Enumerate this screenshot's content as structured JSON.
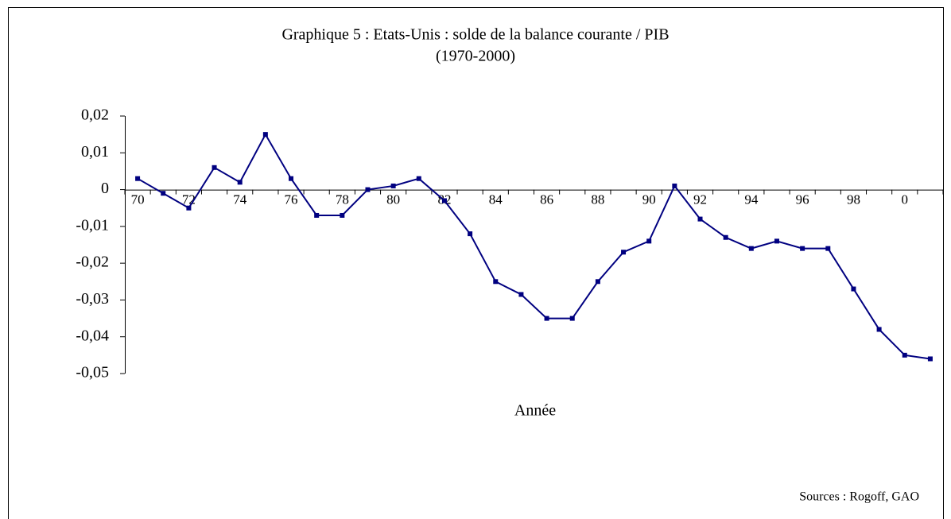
{
  "chart_data": {
    "type": "line",
    "title": "Graphique 5 : Etats-Unis : solde de la balance courante / PIB",
    "subtitle": "(1970-2000)",
    "x_label": "Année",
    "source": "Sources : Rogoff,  GAO",
    "categories": [
      "70",
      null,
      "72",
      null,
      "74",
      null,
      "76",
      null,
      "78",
      null,
      "80",
      null,
      "82",
      null,
      "84",
      null,
      "86",
      null,
      "88",
      null,
      "90",
      null,
      "92",
      null,
      "94",
      null,
      "96",
      null,
      "98",
      null,
      "0",
      null
    ],
    "series": [
      {
        "name": "Solde",
        "color": "#000080",
        "values": [
          0.003,
          -0.001,
          -0.005,
          0.006,
          0.002,
          0.015,
          0.003,
          -0.007,
          -0.007,
          0,
          0.001,
          0.003,
          -0.003,
          -0.012,
          -0.025,
          -0.0285,
          -0.035,
          -0.035,
          -0.025,
          -0.017,
          -0.014,
          0.001,
          -0.008,
          -0.013,
          -0.016,
          -0.014,
          -0.016,
          -0.016,
          -0.027,
          -0.038,
          -0.045,
          -0.046
        ]
      }
    ],
    "ylim": [
      -0.05,
      0.02
    ],
    "yticks": [
      {
        "value": 0.02,
        "label": "0,02"
      },
      {
        "value": 0.01,
        "label": "0,01"
      },
      0,
      {
        "value": -0.01,
        "label": "-0,01"
      },
      {
        "value": -0.02,
        "label": "-0,02"
      },
      {
        "value": -0.03,
        "label": "-0,03"
      },
      {
        "value": -0.04,
        "label": "-0,04"
      },
      {
        "value": -0.05,
        "label": "-0,05"
      }
    ],
    "grid": false
  }
}
